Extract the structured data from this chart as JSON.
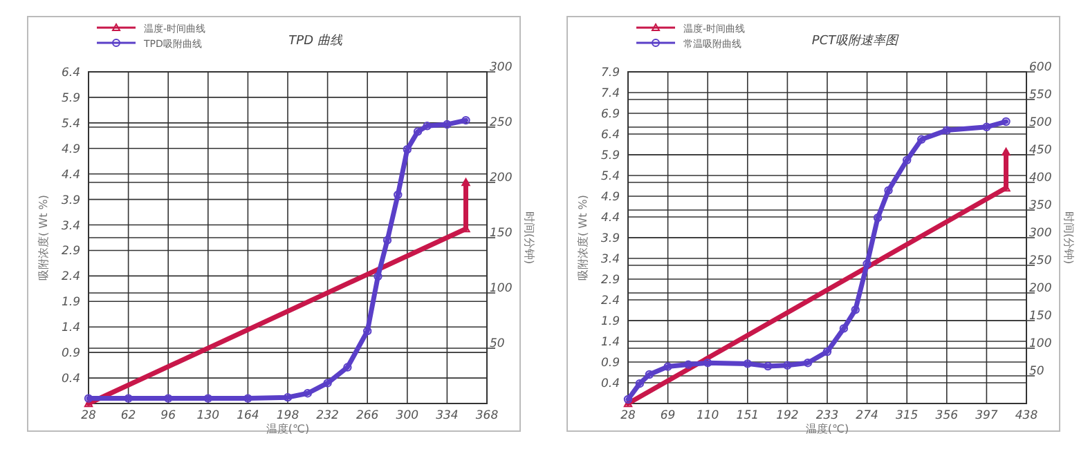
{
  "chart_data": [
    {
      "type": "line",
      "title": "TPD 曲线",
      "xlabel": "温度(℃)",
      "ylabel": "吸附浓度( Wt %)",
      "y2label": "时间(分钟)",
      "legend": "top left",
      "grid": true,
      "xlim": [
        28,
        368
      ],
      "xticks": [
        28,
        62,
        96,
        130,
        164,
        198,
        232,
        266,
        300,
        334,
        368
      ],
      "ylim": [
        -0.1,
        6.4
      ],
      "yticks": [
        0.4,
        0.9,
        1.4,
        1.9,
        2.4,
        2.9,
        3.4,
        3.9,
        4.4,
        4.9,
        5.4,
        5.9,
        6.4
      ],
      "y2lim": [
        0,
        300
      ],
      "y2ticks": [
        50,
        100,
        150,
        200,
        250,
        300
      ],
      "series": [
        {
          "name": "温度-时间曲线",
          "color": "#c8174a",
          "marker": "triangle",
          "axis": "y2",
          "x": [
            28,
            350,
            350
          ],
          "values": [
            0,
            158,
            200
          ]
        },
        {
          "name": "TPD吸附曲线",
          "color": "#5a3fc8",
          "marker": "circle",
          "axis": "y",
          "x": [
            28,
            62,
            96,
            130,
            164,
            198,
            215,
            232,
            249,
            266,
            275,
            283,
            292,
            300,
            309,
            317,
            334,
            350
          ],
          "values": [
            0.0,
            0.0,
            0.0,
            0.0,
            0.0,
            0.02,
            0.1,
            0.3,
            0.61,
            1.32,
            2.39,
            3.1,
            3.99,
            4.88,
            5.23,
            5.34,
            5.37,
            5.45
          ]
        }
      ]
    },
    {
      "type": "line",
      "title": "PCT吸附速率图",
      "xlabel": "温度(℃)",
      "ylabel": "吸附浓度( Wt %)",
      "y2label": "时间(分钟)",
      "legend": "top left",
      "grid": true,
      "xlim": [
        28,
        438
      ],
      "xticks": [
        28,
        69,
        110,
        151,
        192,
        233,
        274,
        315,
        356,
        397,
        438
      ],
      "ylim": [
        -0.1,
        7.9
      ],
      "yticks": [
        0.4,
        0.9,
        1.4,
        1.9,
        2.4,
        2.9,
        3.4,
        3.9,
        4.4,
        4.9,
        5.4,
        5.9,
        6.4,
        6.9,
        7.4,
        7.9
      ],
      "y2lim": [
        0,
        600
      ],
      "y2ticks": [
        50,
        100,
        150,
        200,
        250,
        300,
        350,
        400,
        450,
        500,
        550,
        600
      ],
      "series": [
        {
          "name": "温度-时间曲线",
          "color": "#c8174a",
          "marker": "triangle",
          "axis": "y2",
          "x": [
            28,
            417,
            417
          ],
          "values": [
            0,
            390,
            455
          ]
        },
        {
          "name": "常温吸附曲线",
          "color": "#5a3fc8",
          "marker": "circle",
          "axis": "y",
          "x": [
            28,
            40,
            50,
            69,
            90,
            110,
            151,
            172,
            192,
            213,
            233,
            250,
            262,
            274,
            285,
            296,
            315,
            330,
            356,
            397,
            417
          ],
          "values": [
            0.0,
            0.38,
            0.6,
            0.79,
            0.84,
            0.88,
            0.86,
            0.8,
            0.82,
            0.88,
            1.15,
            1.71,
            2.16,
            3.27,
            4.38,
            5.04,
            5.77,
            6.27,
            6.49,
            6.57,
            6.7
          ]
        }
      ]
    }
  ]
}
